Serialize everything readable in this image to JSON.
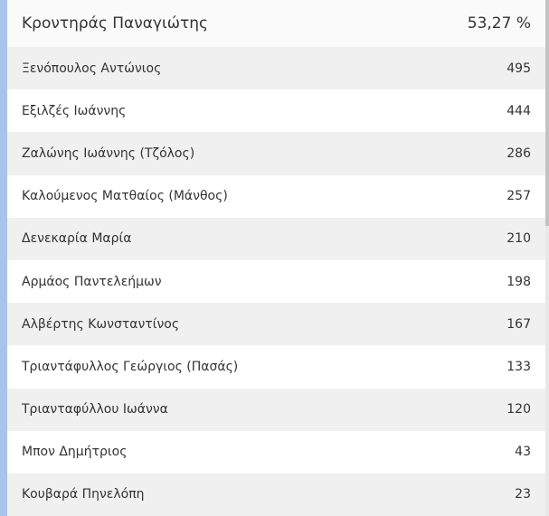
{
  "header": {
    "name": "Κροντηράς Παναγιώτης",
    "value": "53,27 %"
  },
  "rows": [
    {
      "name": "Ξενόπουλος Αντώνιος",
      "votes": 495
    },
    {
      "name": "Εξιλζές Ιωάννης",
      "votes": 444
    },
    {
      "name": "Ζαλώνης Ιωάννης (Τζόλος)",
      "votes": 286
    },
    {
      "name": "Καλούμενος Ματθαίος (Μάνθος)",
      "votes": 257
    },
    {
      "name": "Δενεκαρία Μαρία",
      "votes": 210
    },
    {
      "name": "Αρμάος Παντελεήμων",
      "votes": 198
    },
    {
      "name": "Αλβέρτης Κωνσταντίνος",
      "votes": 167
    },
    {
      "name": "Τριαντάφυλλος Γεώργιος (Πασάς)",
      "votes": 133
    },
    {
      "name": "Τριανταφύλλου Ιωάννα",
      "votes": 120
    },
    {
      "name": "Μπον Δημήτριος",
      "votes": 43
    },
    {
      "name": "Κουβαρά Πηνελόπη",
      "votes": 23
    }
  ]
}
